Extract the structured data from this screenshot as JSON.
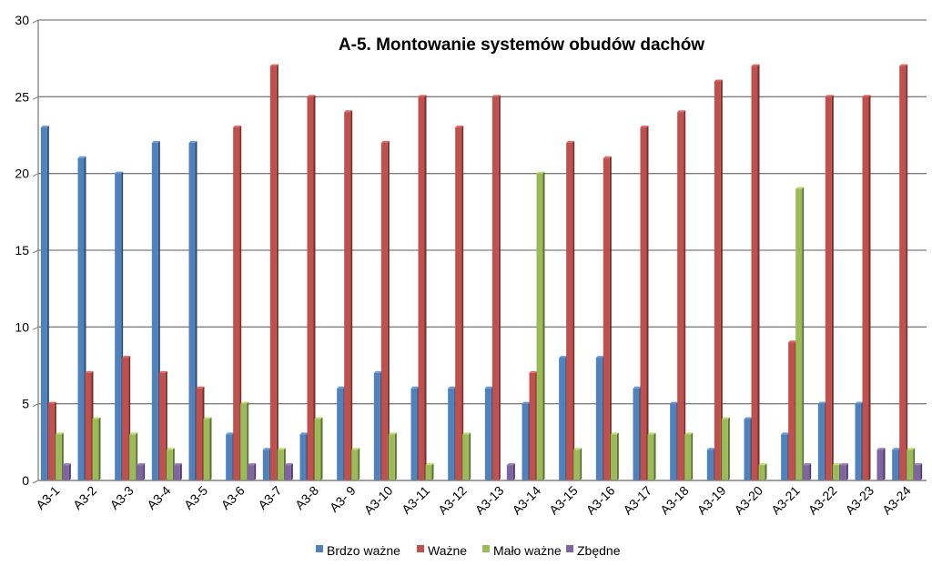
{
  "chart_data": {
    "type": "bar",
    "title": "A-5. Montowanie systemów obudów dachów",
    "xlabel": "",
    "ylabel": "",
    "ylim": [
      0,
      30
    ],
    "yticks": [
      0,
      5,
      10,
      15,
      20,
      25,
      30
    ],
    "grid": true,
    "legend_position": "bottom",
    "categories": [
      "A3-1",
      "A3-2",
      "A3-3",
      "A3-4",
      "A3-5",
      "A3-6",
      "A3-7",
      "A3-8",
      "A3- 9",
      "A3-10",
      "A3-11",
      "A3-12",
      "A3-13",
      "A3-14",
      "A3-15",
      "A3-16",
      "A3-17",
      "A3-18",
      "A3-19",
      "A3-20",
      "A3-21",
      "A3-22",
      "A3-23",
      "A3-24"
    ],
    "series": [
      {
        "name": "Brdzo ważne",
        "color": "#4f81bd",
        "values": [
          23,
          21,
          20,
          22,
          22,
          3,
          2,
          3,
          6,
          7,
          6,
          6,
          6,
          5,
          8,
          8,
          6,
          5,
          2,
          4,
          3,
          5,
          5,
          2
        ]
      },
      {
        "name": "Ważne",
        "color": "#c0504d",
        "values": [
          5,
          7,
          8,
          7,
          6,
          23,
          27,
          25,
          24,
          22,
          25,
          23,
          25,
          7,
          22,
          21,
          23,
          24,
          26,
          27,
          9,
          25,
          25,
          27
        ]
      },
      {
        "name": "Mało ważne",
        "color": "#9bbb59",
        "values": [
          3,
          4,
          3,
          2,
          4,
          5,
          2,
          4,
          2,
          3,
          1,
          3,
          0,
          20,
          2,
          3,
          3,
          3,
          4,
          1,
          19,
          1,
          0,
          2
        ]
      },
      {
        "name": "Zbędne",
        "color": "#8064a2",
        "values": [
          1,
          0,
          1,
          1,
          0,
          1,
          1,
          0,
          0,
          0,
          0,
          0,
          1,
          0,
          0,
          0,
          0,
          0,
          0,
          0,
          1,
          1,
          2,
          1
        ]
      }
    ]
  }
}
